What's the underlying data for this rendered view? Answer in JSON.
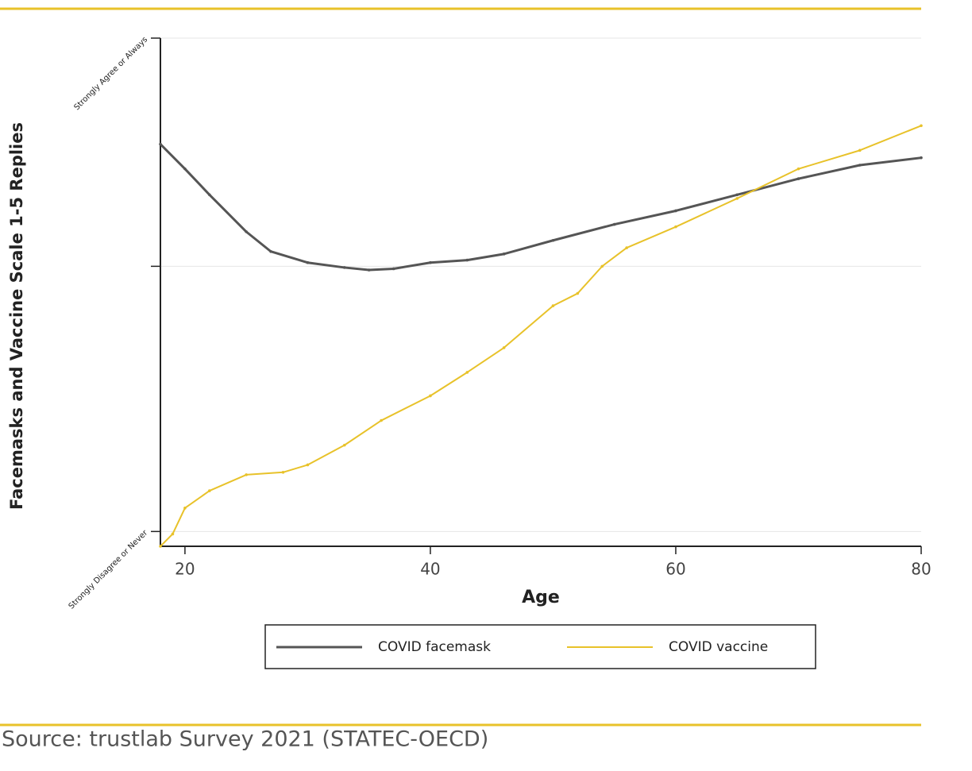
{
  "chart_data": {
    "type": "line",
    "y_label": "Facemasks and Vaccine Scale 1-5 Replies",
    "x_label": "Age",
    "source": "Source: trustlab Survey 2021 (STATEC-OECD)",
    "xlim": [
      18,
      80
    ],
    "xticks": [
      20,
      40,
      60,
      80
    ],
    "ylim": [
      0.88,
      5
    ],
    "yticks": [
      {
        "value": 1,
        "label": "Strongly Disagree or Never"
      },
      {
        "value": 3.15,
        "label": null
      },
      {
        "value": 5,
        "label": "Strongly Agree or Always"
      }
    ],
    "grid": true,
    "series": [
      {
        "name": "COVID facemask",
        "color": "#555555",
        "x": [
          18,
          20,
          22,
          25,
          27,
          30,
          33,
          35,
          37,
          40,
          43,
          46,
          50,
          55,
          60,
          65,
          70,
          75,
          80
        ],
        "values": [
          4.14,
          3.94,
          3.73,
          3.43,
          3.27,
          3.18,
          3.14,
          3.12,
          3.13,
          3.18,
          3.2,
          3.25,
          3.36,
          3.49,
          3.6,
          3.73,
          3.86,
          3.97,
          4.03
        ]
      },
      {
        "name": "COVID vaccine",
        "color": "#e8c22a",
        "x": [
          18,
          19,
          20,
          22,
          25,
          28,
          30,
          33,
          36,
          40,
          43,
          46,
          50,
          52,
          54,
          56,
          60,
          65,
          70,
          75,
          80
        ],
        "values": [
          0.88,
          0.98,
          1.19,
          1.33,
          1.46,
          1.48,
          1.54,
          1.7,
          1.9,
          2.1,
          2.29,
          2.49,
          2.83,
          2.93,
          3.15,
          3.3,
          3.47,
          3.7,
          3.94,
          4.09,
          4.29
        ]
      }
    ],
    "legend": "bottom"
  }
}
